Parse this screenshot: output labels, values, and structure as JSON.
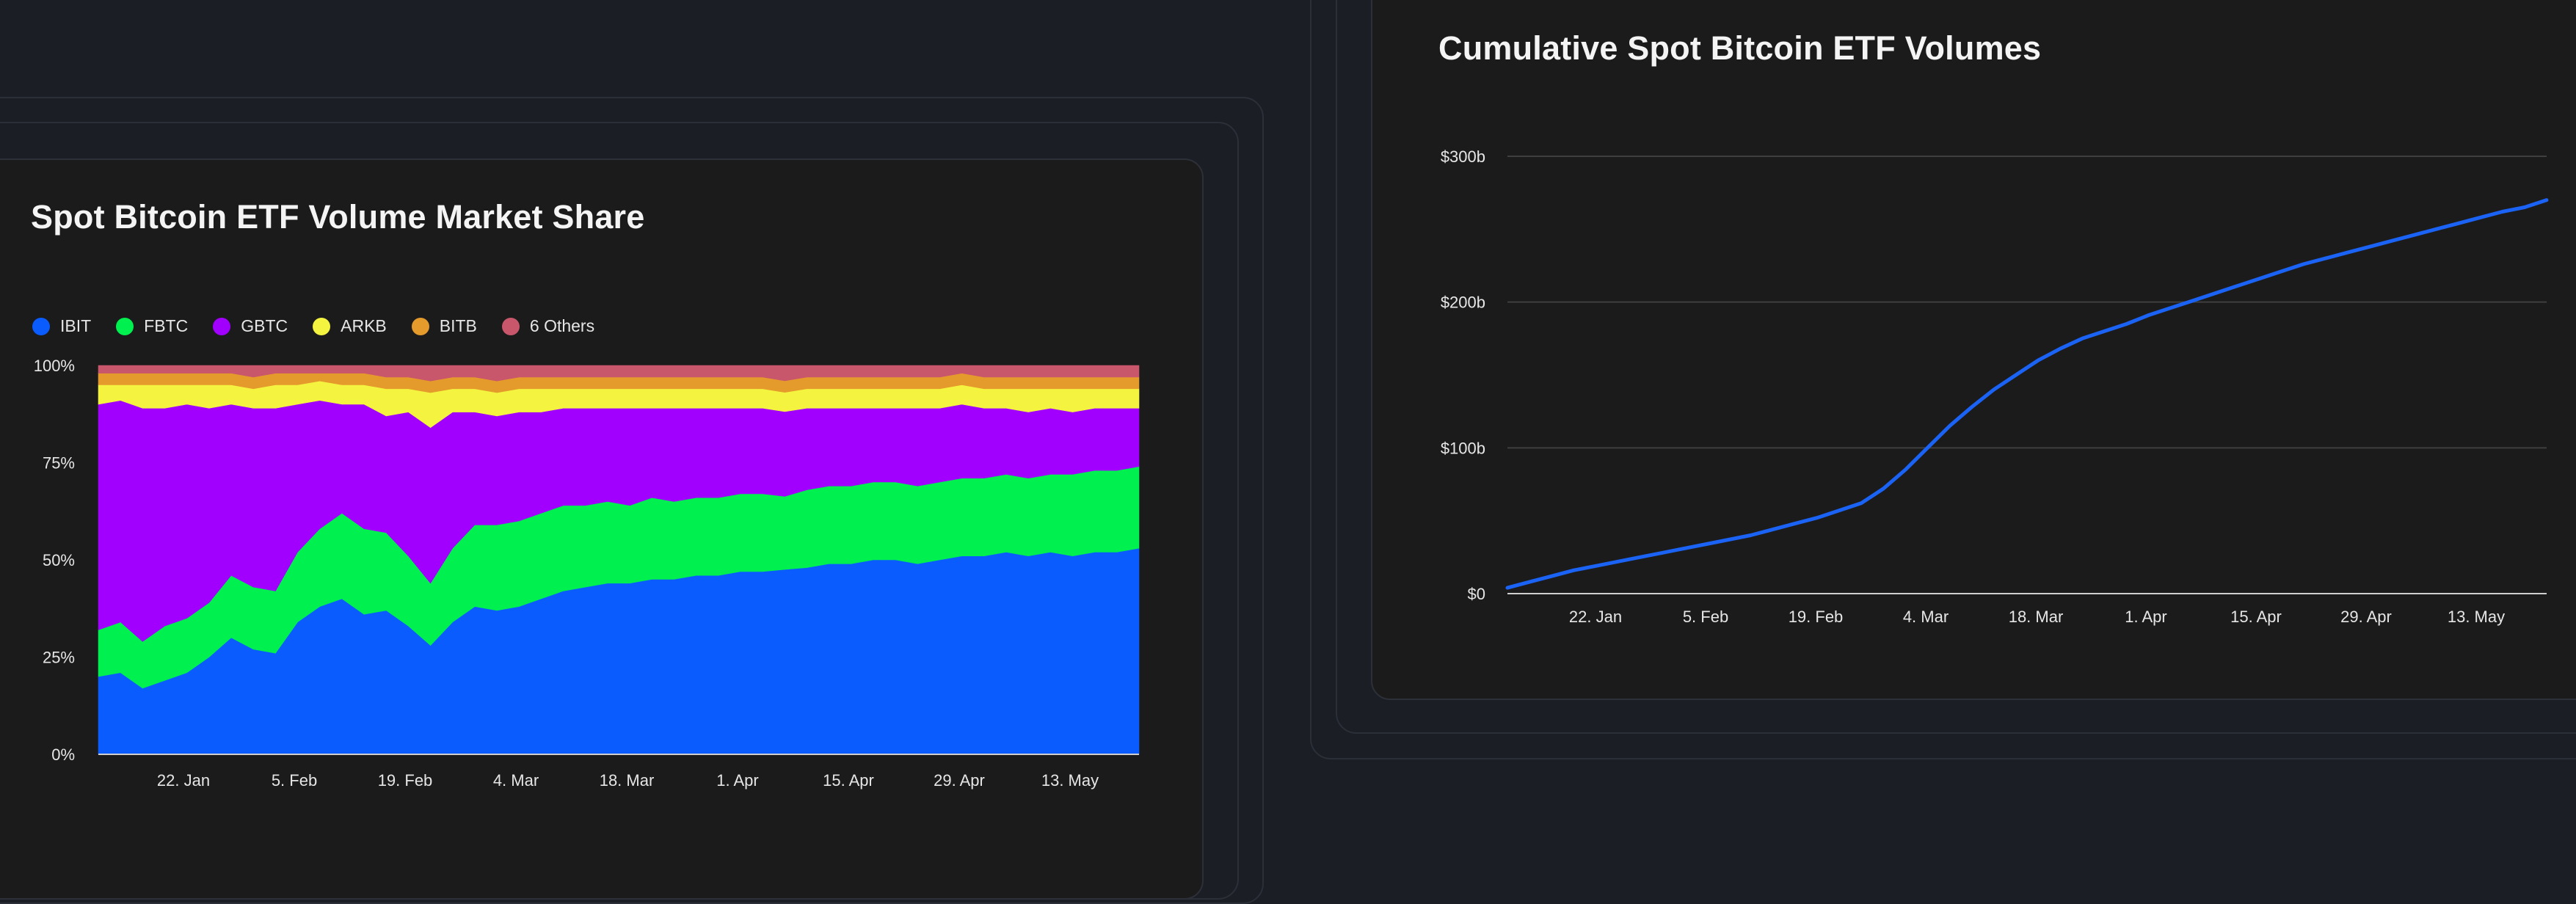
{
  "left_card": {
    "title": "Spot Bitcoin ETF Volume Market Share"
  },
  "right_card": {
    "title": "Cumulative Spot Bitcoin ETF Volumes"
  },
  "chart_data": [
    {
      "type": "area",
      "title": "Spot Bitcoin ETF Volume Market Share",
      "stacking": "percent",
      "legend": "top-left",
      "x_ticks": [
        "22. Jan",
        "5. Feb",
        "19. Feb",
        "4. Mar",
        "18. Mar",
        "1. Apr",
        "15. Apr",
        "29. Apr",
        "13. May"
      ],
      "y_ticks": [
        "0%",
        "25%",
        "50%",
        "75%",
        "100%"
      ],
      "ylim": [
        0,
        100
      ],
      "series": [
        {
          "name": "IBIT",
          "color": "#0a5cff",
          "values": [
            20,
            21,
            17,
            19,
            21,
            25,
            30,
            27,
            26,
            34,
            38,
            40,
            36,
            37,
            33,
            28,
            34,
            38,
            37,
            38,
            40,
            42,
            43,
            44,
            44,
            45,
            45,
            46,
            46,
            47,
            47,
            48,
            48,
            49,
            49,
            50,
            50,
            49,
            50,
            51,
            51,
            52,
            51,
            52,
            51,
            52,
            52,
            53
          ]
        },
        {
          "name": "FBTC",
          "color": "#00f14f",
          "values": [
            12,
            13,
            12,
            14,
            14,
            14,
            16,
            16,
            16,
            18,
            20,
            22,
            22,
            20,
            18,
            16,
            19,
            21,
            22,
            22,
            22,
            22,
            21,
            21,
            20,
            21,
            20,
            20,
            20,
            20,
            20,
            19,
            20,
            20,
            20,
            20,
            20,
            20,
            20,
            20,
            20,
            20,
            20,
            20,
            21,
            21,
            21,
            21
          ]
        },
        {
          "name": "GBTC",
          "color": "#a100ff",
          "values": [
            58,
            57,
            60,
            56,
            55,
            50,
            44,
            46,
            47,
            38,
            33,
            28,
            32,
            30,
            37,
            40,
            35,
            29,
            28,
            28,
            26,
            25,
            25,
            24,
            25,
            23,
            24,
            23,
            23,
            22,
            22,
            22,
            21,
            20,
            20,
            19,
            19,
            20,
            19,
            19,
            18,
            17,
            17,
            17,
            16,
            16,
            16,
            15
          ]
        },
        {
          "name": "ARKB",
          "color": "#f4f440",
          "values": [
            5,
            4,
            6,
            6,
            5,
            6,
            5,
            5,
            6,
            5,
            5,
            5,
            5,
            7,
            6,
            9,
            6,
            6,
            6,
            6,
            6,
            5,
            5,
            5,
            5,
            5,
            5,
            5,
            5,
            5,
            5,
            5,
            5,
            5,
            5,
            5,
            5,
            5,
            5,
            5,
            5,
            5,
            6,
            5,
            6,
            5,
            5,
            5
          ]
        },
        {
          "name": "BITB",
          "color": "#e59a2c",
          "values": [
            3,
            3,
            3,
            3,
            3,
            3,
            3,
            3,
            3,
            3,
            2,
            3,
            3,
            3,
            3,
            3,
            3,
            3,
            3,
            3,
            3,
            3,
            3,
            3,
            3,
            3,
            3,
            3,
            3,
            3,
            3,
            3,
            3,
            3,
            3,
            3,
            3,
            3,
            3,
            3,
            3,
            3,
            3,
            3,
            3,
            3,
            3,
            3
          ]
        },
        {
          "name": "6 Others",
          "color": "#c9576c",
          "values": [
            2,
            2,
            2,
            2,
            2,
            2,
            2,
            3,
            2,
            2,
            2,
            2,
            2,
            3,
            3,
            4,
            3,
            3,
            4,
            3,
            3,
            3,
            3,
            3,
            3,
            3,
            3,
            3,
            3,
            3,
            3,
            4,
            3,
            3,
            3,
            3,
            3,
            3,
            3,
            2,
            3,
            3,
            3,
            3,
            3,
            3,
            3,
            3
          ]
        }
      ]
    },
    {
      "type": "line",
      "title": "Cumulative Spot Bitcoin ETF Volumes",
      "x_ticks": [
        "22. Jan",
        "5. Feb",
        "19. Feb",
        "4. Mar",
        "18. Mar",
        "1. Apr",
        "15. Apr",
        "29. Apr",
        "13. May"
      ],
      "y_ticks": [
        "$0",
        "$100b",
        "$200b",
        "$300b"
      ],
      "ylim": [
        0,
        300
      ],
      "grid": true,
      "series": [
        {
          "name": "",
          "color": "#1b63f5",
          "values": [
            4,
            8,
            12,
            16,
            19,
            22,
            25,
            28,
            31,
            34,
            37,
            40,
            44,
            48,
            52,
            57,
            62,
            72,
            85,
            100,
            115,
            128,
            140,
            150,
            160,
            168,
            175,
            180,
            185,
            191,
            196,
            201,
            206,
            211,
            216,
            221,
            226,
            230,
            234,
            238,
            242,
            246,
            250,
            254,
            258,
            262,
            265,
            270
          ]
        }
      ]
    }
  ]
}
